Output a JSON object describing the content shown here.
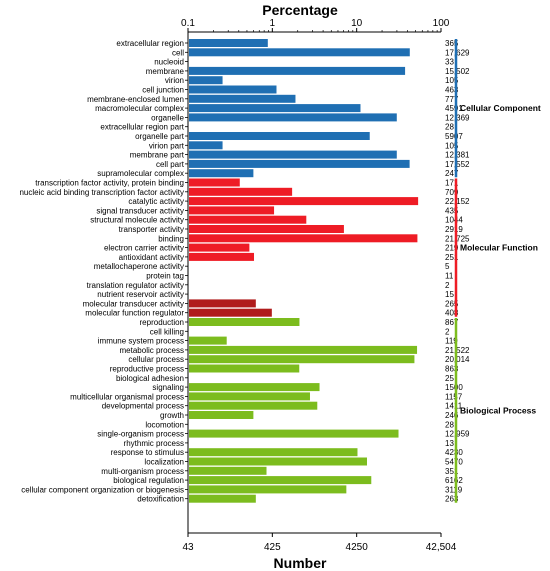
{
  "chart_data": {
    "type": "bar",
    "orientation": "horizontal",
    "title_top": "Percentage",
    "xlabel_bottom": "Number",
    "top_axis": {
      "scale": "log",
      "ticks": [
        "0.1",
        "1",
        "10",
        "100"
      ],
      "lim": [
        0.1,
        100
      ]
    },
    "bottom_axis": {
      "ticks": [
        "43",
        "425",
        "4250",
        "42,504"
      ]
    },
    "grid": false,
    "groups": [
      {
        "name": "Cellular Component",
        "color": "#1f6fb3",
        "rows": [
          {
            "label": "extracellular region",
            "number": "365",
            "value": 0.86
          },
          {
            "label": "cell",
            "number": "17,629",
            "value": 41.5
          },
          {
            "label": "nucleoid",
            "number": "33",
            "value": 0.08
          },
          {
            "label": "membrane",
            "number": "15,502",
            "value": 36.5
          },
          {
            "label": "virion",
            "number": "105",
            "value": 0.25
          },
          {
            "label": "cell junction",
            "number": "463",
            "value": 1.09
          },
          {
            "label": "membrane-enclosed lumen",
            "number": "777",
            "value": 1.83
          },
          {
            "label": "macromolecular complex",
            "number": "4591",
            "value": 10.8
          },
          {
            "label": "organelle",
            "number": "12,369",
            "value": 29.1
          },
          {
            "label": "extracellular region part",
            "number": "28",
            "value": 0.066
          },
          {
            "label": "organelle part",
            "number": "5907",
            "value": 13.9
          },
          {
            "label": "virion part",
            "number": "105",
            "value": 0.25
          },
          {
            "label": "membrane part",
            "number": "12,381",
            "value": 29.1
          },
          {
            "label": "cell part",
            "number": "17,552",
            "value": 41.3
          },
          {
            "label": "supramolecular complex",
            "number": "247",
            "value": 0.58
          }
        ]
      },
      {
        "name": "Molecular Function",
        "color": "#ee1c25",
        "rows": [
          {
            "label": "transcription factor activity, protein binding",
            "number": "171",
            "value": 0.4
          },
          {
            "label": "nucleic acid binding transcription factor activity",
            "number": "709",
            "value": 1.67
          },
          {
            "label": "catalytic activity",
            "number": "22,152",
            "value": 52.1
          },
          {
            "label": "signal transducer activity",
            "number": "435",
            "value": 1.02
          },
          {
            "label": "structural molecule activity",
            "number": "1044",
            "value": 2.46
          },
          {
            "label": "transporter activity",
            "number": "2919",
            "value": 6.87
          },
          {
            "label": "binding",
            "number": "21,725",
            "value": 51.1
          },
          {
            "label": "electron carrier activity",
            "number": "219",
            "value": 0.52
          },
          {
            "label": "antioxidant activity",
            "number": "251",
            "value": 0.59
          },
          {
            "label": "metallochaperone activity",
            "number": "5",
            "value": 0.012
          },
          {
            "label": "protein tag",
            "number": "11",
            "value": 0.026
          },
          {
            "label": "translation regulator activity",
            "number": "2",
            "value": 0.005
          },
          {
            "label": "nutrient reservoir activity",
            "number": "15",
            "value": 0.035
          },
          {
            "label": "molecular transducer activity",
            "number": "265",
            "value": 0.62
          },
          {
            "label": "molecular function regulator",
            "number": "408",
            "value": 0.96
          }
        ]
      },
      {
        "name": "Biological Process",
        "color": "#7cbc1e",
        "rows": [
          {
            "label": "reproduction",
            "number": "867",
            "value": 2.04
          },
          {
            "label": "cell killing",
            "number": "2",
            "value": 0.005
          },
          {
            "label": "immune system process",
            "number": "119",
            "value": 0.28
          },
          {
            "label": "metabolic process",
            "number": "21,522",
            "value": 50.6
          },
          {
            "label": "cellular process",
            "number": "20,014",
            "value": 47.1
          },
          {
            "label": "reproductive process",
            "number": "863",
            "value": 2.03
          },
          {
            "label": "biological adhesion",
            "number": "25",
            "value": 0.059
          },
          {
            "label": "signaling",
            "number": "1500",
            "value": 3.53
          },
          {
            "label": "multicellular organismal process",
            "number": "1157",
            "value": 2.72
          },
          {
            "label": "developmental process",
            "number": "1411",
            "value": 3.32
          },
          {
            "label": "growth",
            "number": "246",
            "value": 0.58
          },
          {
            "label": "locomotion",
            "number": "28",
            "value": 0.066
          },
          {
            "label": "single-organism process",
            "number": "12,959",
            "value": 30.5
          },
          {
            "label": "rhythmic process",
            "number": "13",
            "value": 0.031
          },
          {
            "label": "response to stimulus",
            "number": "4230",
            "value": 9.95
          },
          {
            "label": "localization",
            "number": "5470",
            "value": 12.9
          },
          {
            "label": "multi-organism process",
            "number": "351",
            "value": 0.83
          },
          {
            "label": "biological regulation",
            "number": "6162",
            "value": 14.5
          },
          {
            "label": "cellular component organization or biogenesis",
            "number": "3119",
            "value": 7.34
          },
          {
            "label": "detoxification",
            "number": "263",
            "value": 0.62
          }
        ]
      }
    ],
    "highlighted_color": "#b01c1c",
    "highlighted_rows": [
      "molecular transducer activity",
      "molecular function regulator"
    ]
  }
}
